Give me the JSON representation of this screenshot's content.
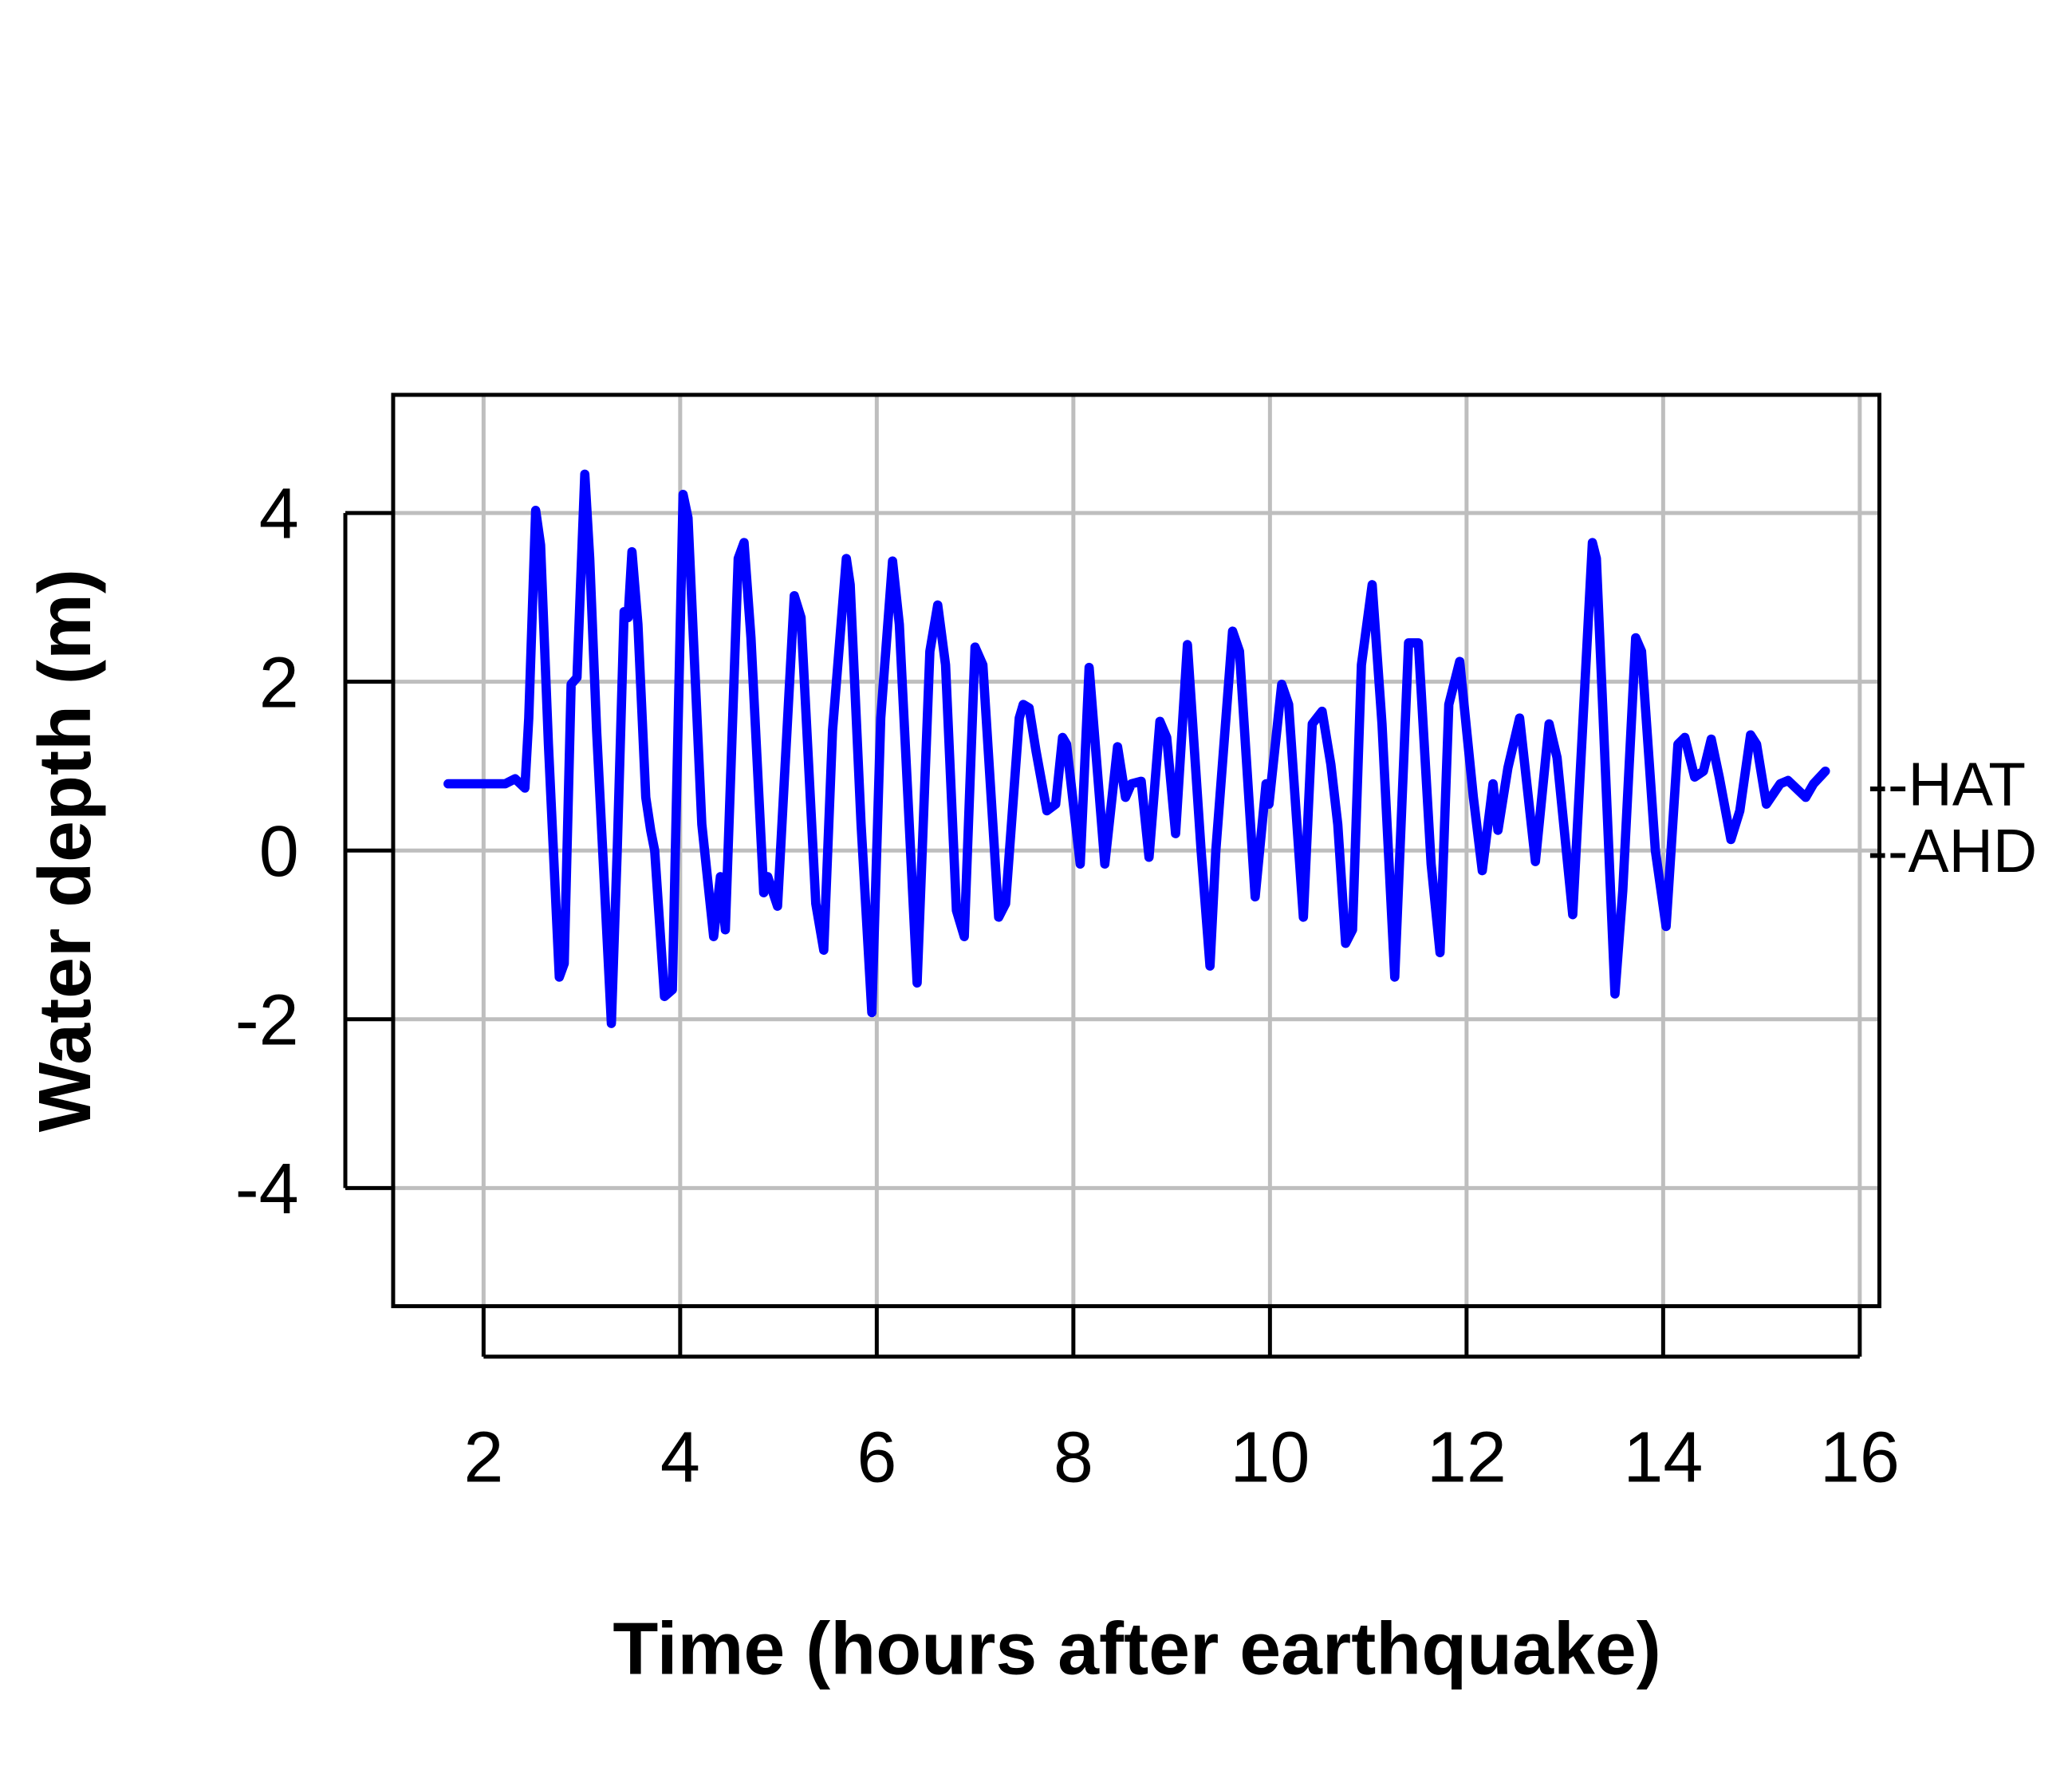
{
  "chart_data": {
    "type": "line",
    "title": "",
    "xlabel": "Time (hours after earthquake)",
    "ylabel": "Water depth (m)",
    "xlim": [
      1.08,
      16.2
    ],
    "ylim": [
      -5.4,
      5.4
    ],
    "xticks": [
      2,
      4,
      6,
      8,
      10,
      12,
      14,
      16
    ],
    "yticks": [
      -4,
      -2,
      0,
      2,
      4
    ],
    "grid": true,
    "line_color": "#0000ff",
    "reference_lines": [
      {
        "label": "--HAT",
        "y": 0.79
      },
      {
        "label": "--AHD",
        "y": 0
      }
    ],
    "series": [
      {
        "name": "Water depth",
        "x": [
          1.64,
          2.22,
          2.32,
          2.42,
          2.46,
          2.53,
          2.58,
          2.66,
          2.77,
          2.82,
          2.89,
          2.95,
          3.03,
          3.08,
          3.15,
          3.3,
          3.36,
          3.43,
          3.47,
          3.51,
          3.57,
          3.65,
          3.7,
          3.74,
          3.84,
          3.92,
          4.03,
          4.08,
          4.22,
          4.34,
          4.41,
          4.46,
          4.59,
          4.65,
          4.72,
          4.85,
          4.89,
          4.99,
          5.16,
          5.23,
          5.38,
          5.46,
          5.55,
          5.69,
          5.73,
          5.84,
          5.95,
          6.04,
          6.16,
          6.23,
          6.41,
          6.54,
          6.62,
          6.7,
          6.81,
          6.89,
          7.0,
          7.08,
          7.24,
          7.31,
          7.45,
          7.49,
          7.55,
          7.62,
          7.73,
          7.82,
          7.89,
          7.93,
          8.07,
          8.16,
          8.32,
          8.45,
          8.53,
          8.59,
          8.69,
          8.77,
          8.88,
          8.95,
          9.04,
          9.16,
          9.3,
          9.39,
          9.45,
          9.62,
          9.69,
          9.85,
          9.96,
          9.99,
          10.12,
          10.19,
          10.34,
          10.43,
          10.53,
          10.62,
          10.69,
          10.77,
          10.84,
          10.93,
          11.04,
          11.14,
          11.27,
          11.41,
          11.51,
          11.64,
          11.73,
          11.82,
          11.93,
          12.07,
          12.16,
          12.27,
          12.32,
          12.42,
          12.54,
          12.7,
          12.84,
          12.92,
          13.08,
          13.28,
          13.32,
          13.51,
          13.59,
          13.72,
          13.78,
          13.92,
          14.03,
          14.15,
          14.22,
          14.32,
          14.41,
          14.49,
          14.57,
          14.69,
          14.78,
          14.89,
          14.95,
          15.05,
          15.19,
          15.27,
          15.45,
          15.53,
          15.65
        ],
        "y": [
          0.79,
          0.79,
          0.85,
          0.74,
          1.57,
          4.03,
          3.62,
          1.26,
          -1.5,
          -1.34,
          1.97,
          2.05,
          4.46,
          3.46,
          1.42,
          -2.05,
          0,
          2.83,
          2.76,
          3.54,
          2.68,
          0.63,
          0.24,
          0,
          -1.73,
          -1.65,
          4.22,
          3.94,
          0.31,
          -1.02,
          -0.31,
          -0.94,
          3.46,
          3.65,
          2.52,
          -0.5,
          -0.31,
          -0.66,
          3.02,
          2.76,
          -0.63,
          -1.18,
          1.42,
          3.46,
          3.15,
          0.31,
          -1.92,
          1.57,
          3.43,
          2.68,
          -1.57,
          2.36,
          2.91,
          2.2,
          -0.71,
          -1.02,
          2.41,
          2.2,
          -0.79,
          -0.63,
          1.57,
          1.73,
          1.69,
          1.18,
          0.47,
          0.55,
          1.34,
          1.26,
          -0.16,
          2.17,
          -0.16,
          1.23,
          0.63,
          0.79,
          0.82,
          -0.08,
          1.53,
          1.34,
          0.2,
          2.44,
          0,
          -1.37,
          0,
          2.6,
          2.36,
          -0.55,
          0.79,
          0.55,
          1.97,
          1.73,
          -0.79,
          1.5,
          1.65,
          1.02,
          0.31,
          -1.1,
          -0.94,
          2.2,
          3.15,
          1.5,
          -1.5,
          2.46,
          2.46,
          -0.16,
          -1.21,
          1.73,
          2.24,
          0.63,
          -0.24,
          0.79,
          0.24,
          0.98,
          1.57,
          -0.13,
          1.5,
          1.1,
          -0.76,
          3.65,
          3.46,
          -1.7,
          -0.47,
          2.52,
          2.36,
          0,
          -0.9,
          1.26,
          1.34,
          0.87,
          0.94,
          1.32,
          0.87,
          0.13,
          0.47,
          1.37,
          1.26,
          0.55,
          0.79,
          0.83,
          0.63,
          0.79,
          0.94
        ]
      }
    ]
  }
}
